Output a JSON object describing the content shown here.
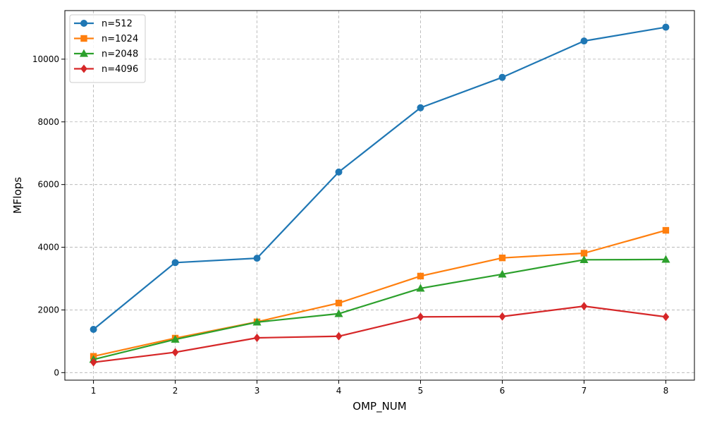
{
  "chart_data": {
    "type": "line",
    "title": "",
    "xlabel": "OMP_NUM",
    "ylabel": "MFlops",
    "x": [
      1,
      2,
      3,
      4,
      5,
      6,
      7,
      8
    ],
    "x_ticks": [
      "1",
      "2",
      "3",
      "4",
      "5",
      "6",
      "7",
      "8"
    ],
    "y_ticks": [
      "0",
      "2000",
      "4000",
      "6000",
      "8000",
      "10000"
    ],
    "xlim": [
      0.65,
      8.35
    ],
    "ylim": [
      -240,
      11550
    ],
    "grid": true,
    "legend_position": "top-left",
    "series": [
      {
        "name": "n=512",
        "color": "#1f77b4",
        "marker": "circle",
        "values": [
          1380,
          3510,
          3650,
          6400,
          8450,
          9420,
          10580,
          11020
        ]
      },
      {
        "name": "n=1024",
        "color": "#ff7f0e",
        "marker": "square",
        "values": [
          520,
          1100,
          1620,
          2220,
          3080,
          3660,
          3810,
          4540
        ]
      },
      {
        "name": "n=2048",
        "color": "#2ca02c",
        "marker": "triangle",
        "values": [
          420,
          1060,
          1610,
          1880,
          2690,
          3140,
          3600,
          3610
        ]
      },
      {
        "name": "n=4096",
        "color": "#d62728",
        "marker": "diamond",
        "values": [
          330,
          650,
          1110,
          1160,
          1780,
          1790,
          2120,
          1780
        ]
      }
    ]
  }
}
